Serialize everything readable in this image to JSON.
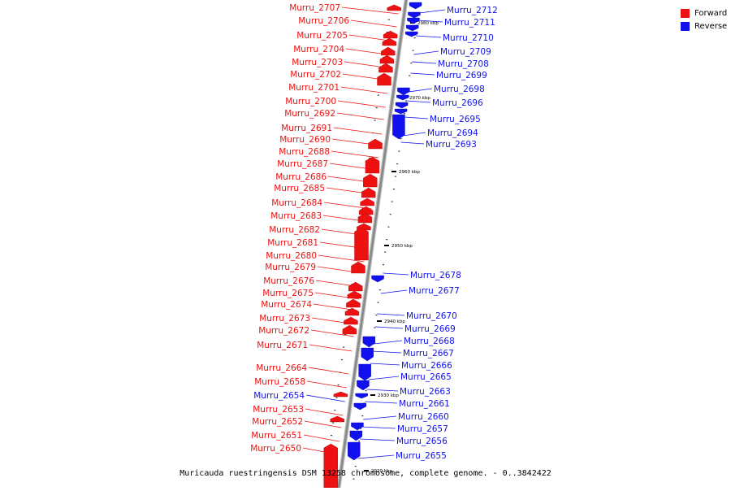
{
  "colors": {
    "forward": "#ee1111",
    "reverse": "#1111ee",
    "backbone": "#888888"
  },
  "legend": [
    {
      "label": "Forward",
      "color": "#ee1111"
    },
    {
      "label": "Reverse",
      "color": "#1111ee"
    }
  ],
  "caption": "Muricauda ruestringensis DSM 13258 chromosome, complete genome. - 0..3842422",
  "ticks": [
    "2980 kbp",
    "2970 kbp",
    "2960 kbp",
    "2950 kbp",
    "2940 kbp",
    "2930 kbp",
    "2920 kbp"
  ],
  "genes": [
    {
      "name": "Murru_2712",
      "strand": "reverse"
    },
    {
      "name": "Murru_2711",
      "strand": "reverse"
    },
    {
      "name": "Murru_2710",
      "strand": "reverse"
    },
    {
      "name": "Murru_2709",
      "strand": "reverse"
    },
    {
      "name": "Murru_2708",
      "strand": "reverse"
    },
    {
      "name": "Murru_2699",
      "strand": "reverse"
    },
    {
      "name": "Murru_2698",
      "strand": "reverse"
    },
    {
      "name": "Murru_2696",
      "strand": "reverse"
    },
    {
      "name": "Murru_2695",
      "strand": "reverse"
    },
    {
      "name": "Murru_2694",
      "strand": "reverse"
    },
    {
      "name": "Murru_2693",
      "strand": "reverse"
    },
    {
      "name": "Murru_2678",
      "strand": "reverse"
    },
    {
      "name": "Murru_2677",
      "strand": "reverse"
    },
    {
      "name": "Murru_2670",
      "strand": "reverse"
    },
    {
      "name": "Murru_2669",
      "strand": "reverse"
    },
    {
      "name": "Murru_2668",
      "strand": "reverse"
    },
    {
      "name": "Murru_2667",
      "strand": "reverse"
    },
    {
      "name": "Murru_2666",
      "strand": "reverse"
    },
    {
      "name": "Murru_2665",
      "strand": "reverse"
    },
    {
      "name": "Murru_2663",
      "strand": "reverse"
    },
    {
      "name": "Murru_2661",
      "strand": "reverse"
    },
    {
      "name": "Murru_2660",
      "strand": "reverse"
    },
    {
      "name": "Murru_2657",
      "strand": "reverse"
    },
    {
      "name": "Murru_2656",
      "strand": "reverse"
    },
    {
      "name": "Murru_2655",
      "strand": "reverse"
    },
    {
      "name": "Murru_2707",
      "strand": "forward"
    },
    {
      "name": "Murru_2706",
      "strand": "forward"
    },
    {
      "name": "Murru_2705",
      "strand": "forward"
    },
    {
      "name": "Murru_2704",
      "strand": "forward"
    },
    {
      "name": "Murru_2703",
      "strand": "forward"
    },
    {
      "name": "Murru_2702",
      "strand": "forward"
    },
    {
      "name": "Murru_2701",
      "strand": "forward"
    },
    {
      "name": "Murru_2700",
      "strand": "forward"
    },
    {
      "name": "Murru_2692",
      "strand": "forward"
    },
    {
      "name": "Murru_2691",
      "strand": "forward"
    },
    {
      "name": "Murru_2690",
      "strand": "forward"
    },
    {
      "name": "Murru_2688",
      "strand": "forward"
    },
    {
      "name": "Murru_2687",
      "strand": "forward"
    },
    {
      "name": "Murru_2686",
      "strand": "forward"
    },
    {
      "name": "Murru_2685",
      "strand": "forward"
    },
    {
      "name": "Murru_2684",
      "strand": "forward"
    },
    {
      "name": "Murru_2683",
      "strand": "forward"
    },
    {
      "name": "Murru_2682",
      "strand": "forward"
    },
    {
      "name": "Murru_2681",
      "strand": "forward"
    },
    {
      "name": "Murru_2680",
      "strand": "forward"
    },
    {
      "name": "Murru_2679",
      "strand": "forward"
    },
    {
      "name": "Murru_2676",
      "strand": "forward"
    },
    {
      "name": "Murru_2675",
      "strand": "forward"
    },
    {
      "name": "Murru_2674",
      "strand": "forward"
    },
    {
      "name": "Murru_2673",
      "strand": "forward"
    },
    {
      "name": "Murru_2672",
      "strand": "forward"
    },
    {
      "name": "Murru_2671",
      "strand": "forward"
    },
    {
      "name": "Murru_2664",
      "strand": "forward"
    },
    {
      "name": "Murru_2658",
      "strand": "forward"
    },
    {
      "name": "Murru_2654",
      "strand": "reverse"
    },
    {
      "name": "Murru_2653",
      "strand": "forward"
    },
    {
      "name": "Murru_2652",
      "strand": "forward"
    },
    {
      "name": "Murru_2651",
      "strand": "forward"
    },
    {
      "name": "Murru_2650",
      "strand": "forward"
    }
  ]
}
